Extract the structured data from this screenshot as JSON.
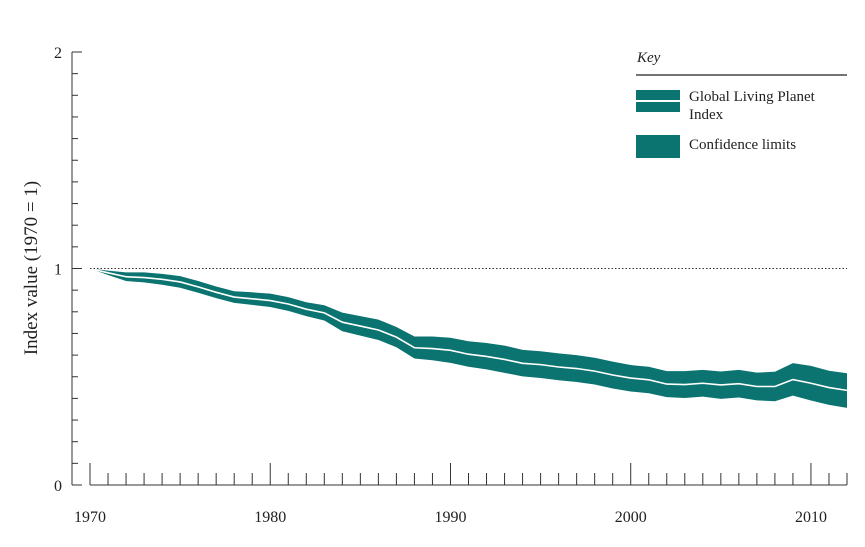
{
  "chart_data": {
    "type": "area",
    "ylabel": "Index value (1970 = 1)",
    "xlim": [
      1970,
      2012
    ],
    "ylim": [
      0,
      2
    ],
    "x_ticks": [
      1970,
      1980,
      1990,
      2000,
      2010
    ],
    "x_tick_labels": [
      "1970",
      "1980",
      "1990",
      "2000",
      "2010"
    ],
    "y_ticks": [
      0,
      1,
      2
    ],
    "y_tick_labels": [
      "0",
      "1",
      "2"
    ],
    "reference_line": 1,
    "grid": false,
    "legend_position": "top-right",
    "legend_title": "Key",
    "legend": [
      {
        "label_lines": [
          "Global Living Planet",
          "Index"
        ],
        "kind": "line"
      },
      {
        "label_lines": [
          "Confidence limits"
        ],
        "kind": "band"
      }
    ],
    "colors": {
      "band": "#0b7470",
      "index_line": "#ffffff",
      "axis": "#333333"
    },
    "x": [
      1970,
      1971,
      1972,
      1973,
      1974,
      1975,
      1976,
      1977,
      1978,
      1979,
      1980,
      1981,
      1982,
      1983,
      1984,
      1985,
      1986,
      1987,
      1988,
      1989,
      1990,
      1991,
      1992,
      1993,
      1994,
      1995,
      1996,
      1997,
      1998,
      1999,
      2000,
      2001,
      2002,
      2003,
      2004,
      2005,
      2006,
      2007,
      2008,
      2009,
      2010,
      2011,
      2012
    ],
    "series": [
      {
        "name": "Global Living Planet Index",
        "values": [
          1.0,
          0.98,
          0.962,
          0.958,
          0.95,
          0.938,
          0.915,
          0.89,
          0.868,
          0.86,
          0.852,
          0.836,
          0.812,
          0.795,
          0.752,
          0.734,
          0.716,
          0.683,
          0.634,
          0.63,
          0.622,
          0.604,
          0.594,
          0.58,
          0.562,
          0.556,
          0.545,
          0.538,
          0.526,
          0.508,
          0.494,
          0.486,
          0.466,
          0.464,
          0.47,
          0.462,
          0.468,
          0.455,
          0.455,
          0.487,
          0.47,
          0.45,
          0.437
        ]
      },
      {
        "name": "Confidence limits (upper)",
        "values": [
          1.0,
          0.99,
          0.982,
          0.982,
          0.975,
          0.965,
          0.942,
          0.917,
          0.895,
          0.89,
          0.884,
          0.868,
          0.844,
          0.83,
          0.796,
          0.78,
          0.764,
          0.73,
          0.686,
          0.686,
          0.68,
          0.664,
          0.656,
          0.644,
          0.624,
          0.618,
          0.608,
          0.6,
          0.588,
          0.57,
          0.554,
          0.546,
          0.526,
          0.526,
          0.532,
          0.524,
          0.532,
          0.519,
          0.523,
          0.563,
          0.55,
          0.528,
          0.516
        ]
      },
      {
        "name": "Confidence limits (lower)",
        "values": [
          1.0,
          0.97,
          0.942,
          0.936,
          0.925,
          0.911,
          0.888,
          0.863,
          0.841,
          0.832,
          0.822,
          0.804,
          0.78,
          0.76,
          0.71,
          0.69,
          0.67,
          0.636,
          0.584,
          0.576,
          0.564,
          0.546,
          0.534,
          0.518,
          0.502,
          0.494,
          0.484,
          0.476,
          0.464,
          0.446,
          0.432,
          0.424,
          0.406,
          0.402,
          0.408,
          0.398,
          0.404,
          0.391,
          0.387,
          0.413,
          0.39,
          0.37,
          0.356
        ]
      }
    ]
  }
}
